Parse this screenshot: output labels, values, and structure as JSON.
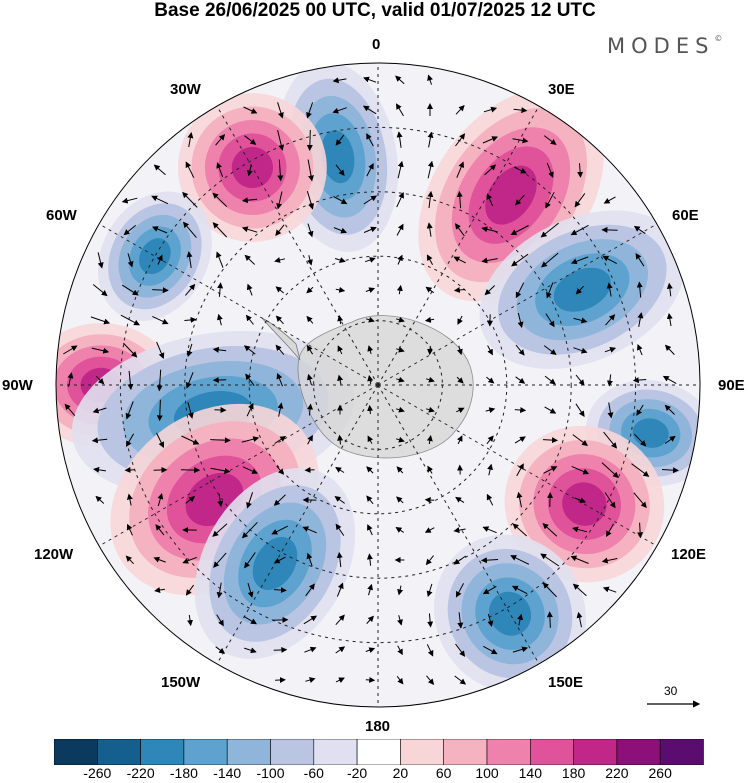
{
  "title": "Base 26/06/2025 00 UTC, valid 01/07/2025 12 UTC",
  "brand": "MODES",
  "brand_mark": "©",
  "longitude_labels": {
    "lon_0": "0",
    "lon_30e": "30E",
    "lon_60e": "60E",
    "lon_90e": "90E",
    "lon_120e": "120E",
    "lon_150e": "150E",
    "lon_180": "180",
    "lon_150w": "150W",
    "lon_120w": "120W",
    "lon_90w": "90W",
    "lon_60w": "60W",
    "lon_30w": "30W"
  },
  "wind_scale": {
    "value": "30"
  },
  "colorbar": {
    "ticks": [
      "-260",
      "-220",
      "-180",
      "-140",
      "-100",
      "-60",
      "-20",
      "20",
      "60",
      "100",
      "140",
      "180",
      "220",
      "260"
    ],
    "colors": [
      "#0b3a5e",
      "#155f8e",
      "#2f86b8",
      "#5ea3cf",
      "#8fb5da",
      "#b9c5e3",
      "#e0e0f0",
      "#ffffff",
      "#f8d6d8",
      "#f5b3c2",
      "#ef82ad",
      "#e0529a",
      "#c02788",
      "#8c0f7a",
      "#5a0d6e"
    ]
  },
  "projection": "south polar stereographic",
  "anomaly_centers": [
    {
      "lon": "10W",
      "sign": "negative"
    },
    {
      "lon": "35E",
      "sign": "positive"
    },
    {
      "lon": "30W",
      "sign": "positive"
    },
    {
      "lon": "60W",
      "sign": "negative"
    },
    {
      "lon": "65E",
      "sign": "negative"
    },
    {
      "lon": "90W",
      "sign": "positive"
    },
    {
      "lon": "100W",
      "sign": "negative"
    },
    {
      "lon": "100E",
      "sign": "negative"
    },
    {
      "lon": "125W",
      "sign": "positive"
    },
    {
      "lon": "150W",
      "sign": "negative"
    },
    {
      "lon": "120E",
      "sign": "positive"
    },
    {
      "lon": "150E",
      "sign": "negative"
    }
  ]
}
